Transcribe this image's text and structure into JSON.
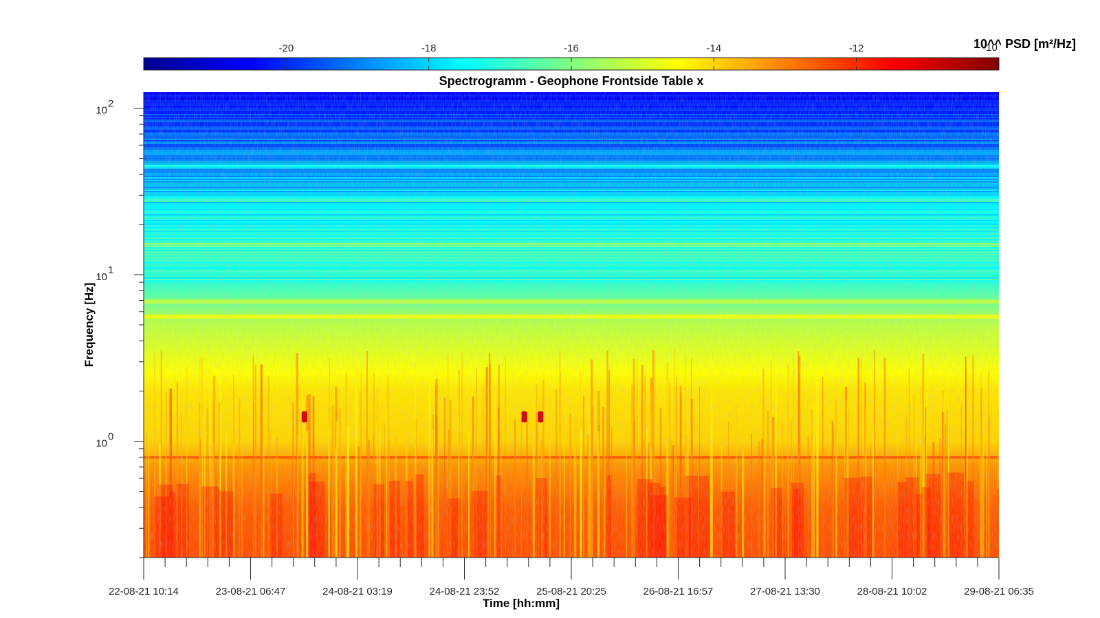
{
  "chart_data": {
    "type": "heatmap",
    "title": "Spectrogramm - Geophone Frontside Table x",
    "xlabel": "Time [hh:mm]",
    "ylabel": "Frequency [Hz]",
    "y_scale": "log",
    "ylim": [
      0.2,
      125
    ],
    "y_tick_values": [
      1,
      10,
      100
    ],
    "y_tick_labels": [
      {
        "base": "10",
        "exp": "0"
      },
      {
        "base": "10",
        "exp": "1"
      },
      {
        "base": "10",
        "exp": "2"
      }
    ],
    "x_tick_labels": [
      "22-08-21 10:14",
      "23-08-21 06:47",
      "24-08-21 03:19",
      "24-08-21 23:52",
      "25-08-21 20:25",
      "26-08-21 16:57",
      "27-08-21 13:30",
      "28-08-21 10:02",
      "29-08-21 06:35"
    ],
    "colorbar": {
      "label": "10^^ PSD [m²/Hz]",
      "overlap_label": "-10",
      "range": [
        -22,
        -10
      ],
      "ticks": [
        -20,
        -18,
        -16,
        -14,
        -12
      ],
      "tick_labels": [
        "-20",
        "-18",
        "-16",
        "-14",
        "-12"
      ],
      "colormap": "jet"
    },
    "horizontal_bands_hz": [
      0.8,
      5.6,
      6.9,
      15,
      28,
      45
    ],
    "peak_events": [
      {
        "time": "23-08-21 ~14:30",
        "freq_hz": 1.4,
        "log10_psd": -11
      },
      {
        "time": "25-08-21 ~11:00",
        "freq_hz": 1.4,
        "log10_psd": -11
      },
      {
        "time": "25-08-21 ~14:00",
        "freq_hz": 1.4,
        "log10_psd": -11
      }
    ],
    "level_profile": [
      {
        "freq_hz": 0.2,
        "log10_psd": -12.4
      },
      {
        "freq_hz": 0.4,
        "log10_psd": -12.6
      },
      {
        "freq_hz": 0.7,
        "log10_psd": -13.2
      },
      {
        "freq_hz": 1.0,
        "log10_psd": -14.0
      },
      {
        "freq_hz": 2.0,
        "log10_psd": -14.2
      },
      {
        "freq_hz": 5.0,
        "log10_psd": -15.3
      },
      {
        "freq_hz": 6.0,
        "log10_psd": -15.8
      },
      {
        "freq_hz": 10.0,
        "log10_psd": -17.3
      },
      {
        "freq_hz": 15.0,
        "log10_psd": -17.0
      },
      {
        "freq_hz": 30.0,
        "log10_psd": -18.0
      },
      {
        "freq_hz": 70.0,
        "log10_psd": -19.5
      },
      {
        "freq_hz": 125.0,
        "log10_psd": -20.2
      }
    ]
  }
}
